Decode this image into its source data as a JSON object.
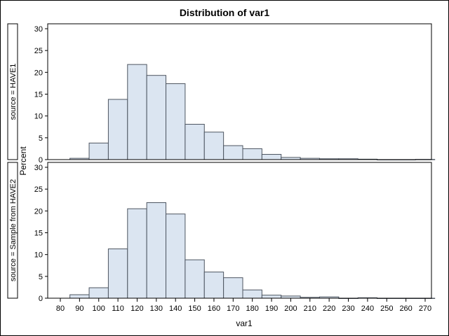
{
  "chart_data": {
    "type": "bar",
    "title": "Distribution of var1",
    "xlabel": "var1",
    "ylabel": "Percent",
    "xlim": [
      75,
      275
    ],
    "ylim": [
      0,
      30
    ],
    "x_ticks": [
      80,
      90,
      100,
      110,
      120,
      130,
      140,
      150,
      160,
      170,
      180,
      190,
      200,
      210,
      220,
      230,
      240,
      250,
      260,
      270
    ],
    "y_ticks": [
      0,
      5,
      10,
      15,
      20,
      25,
      30
    ],
    "bin_width": 10,
    "categories": [
      90,
      100,
      110,
      120,
      130,
      140,
      150,
      160,
      170,
      180,
      190,
      200,
      210,
      220,
      230,
      240,
      250,
      260,
      270
    ],
    "panels": [
      {
        "label": "source = HAVE1",
        "values": [
          0.3,
          3.8,
          13.8,
          21.8,
          19.3,
          17.4,
          8.1,
          6.3,
          3.2,
          2.5,
          1.2,
          0.5,
          0.3,
          0.2,
          0.2,
          0.1,
          0,
          0,
          0.05
        ]
      },
      {
        "label": "source = Sample from HAVE2",
        "values": [
          0.8,
          2.4,
          11.3,
          20.5,
          21.9,
          19.3,
          8.8,
          6.0,
          4.7,
          1.9,
          0.7,
          0.5,
          0.2,
          0.3,
          0,
          0.1,
          0,
          0,
          0
        ]
      }
    ],
    "colors": {
      "bar_fill": "#dbe5f1",
      "bar_edge": "#4d5560",
      "axis": "#000000"
    },
    "grid": false,
    "legend": null
  }
}
